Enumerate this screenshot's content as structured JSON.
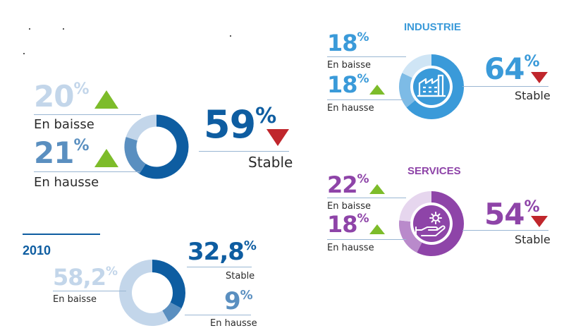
{
  "colors": {
    "up": "#7dbc2a",
    "down": "#c0262c",
    "main_dark": "#0e5da1",
    "main_mid": "#5a8fc0",
    "main_light": "#c3d6ea",
    "ind_dark": "#3a9ad9",
    "ind_mid": "#7dbbe6",
    "ind_light": "#cfe5f5",
    "serv_dark": "#8e44a8",
    "serv_mid": "#b98acb",
    "serv_light": "#e6d6ee"
  },
  "main": {
    "baisse_value": "20",
    "baisse_label": "En baisse",
    "hausse_value": "21",
    "hausse_label": "En hausse",
    "stable_value": "59",
    "stable_label": "Stable",
    "percent": "%"
  },
  "industrie": {
    "title": "INDUSTRIE",
    "baisse_value": "18",
    "baisse_label": "En baisse",
    "hausse_value": "18",
    "hausse_label": "En hausse",
    "stable_value": "64",
    "stable_label": "Stable",
    "percent": "%",
    "icon": "factory-icon"
  },
  "services": {
    "title": "SERVICES",
    "baisse_value": "22",
    "baisse_label": "En baisse",
    "hausse_value": "18",
    "hausse_label": "En hausse",
    "stable_value": "54",
    "stable_label": "Stable",
    "percent": "%",
    "icon": "gear-hand-icon"
  },
  "y2010": {
    "title": "2010",
    "baisse_value": "58,2",
    "baisse_label": "En baisse",
    "stable_value": "32,8",
    "stable_label": "Stable",
    "hausse_value": "9",
    "hausse_label": "En hausse",
    "percent": "%"
  },
  "chart_data": [
    {
      "type": "pie",
      "categories": [
        "Stable",
        "En hausse",
        "En baisse"
      ],
      "values": [
        59,
        21,
        20
      ],
      "trends": [
        "down",
        "up",
        "up"
      ]
    },
    {
      "type": "pie",
      "title": "INDUSTRIE",
      "categories": [
        "Stable",
        "En hausse",
        "En baisse"
      ],
      "values": [
        64,
        18,
        18
      ],
      "trends": [
        "down",
        "up",
        "none"
      ]
    },
    {
      "type": "pie",
      "title": "SERVICES",
      "categories": [
        "Stable",
        "En hausse",
        "En baisse"
      ],
      "values": [
        54,
        18,
        22
      ],
      "trends": [
        "down",
        "up",
        "up"
      ]
    },
    {
      "type": "pie",
      "title": "2010",
      "categories": [
        "Stable",
        "En hausse",
        "En baisse"
      ],
      "values": [
        32.8,
        9,
        58.2
      ]
    }
  ]
}
